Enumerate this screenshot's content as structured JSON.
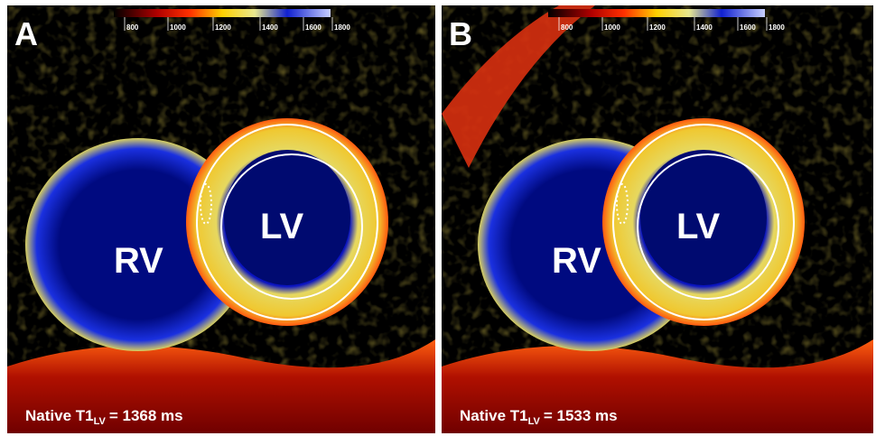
{
  "panels": [
    {
      "label": "A",
      "colorbar_ticks": [
        "800",
        "1000",
        "1200",
        "1400",
        "1600",
        "1800"
      ],
      "regions": [
        "RV",
        "LV"
      ],
      "measurement": {
        "text": "Native T1",
        "subscript": "LV",
        "value": "= 1368 ms"
      }
    },
    {
      "label": "B",
      "colorbar_ticks": [
        "800",
        "1000",
        "1200",
        "1400",
        "1600",
        "1800"
      ],
      "regions": [
        "RV",
        "LV"
      ],
      "measurement": {
        "text": "Native T1",
        "subscript": "LV",
        "value": "= 1533 ms"
      }
    }
  ]
}
